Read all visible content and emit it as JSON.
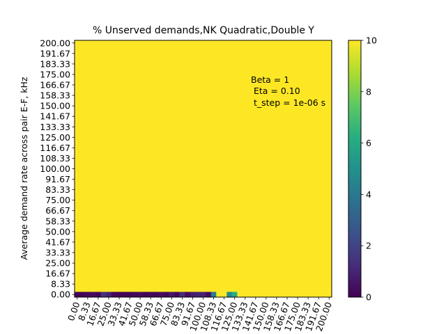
{
  "chart_data": {
    "type": "heatmap",
    "title": "% Unserved demands,NK Quadratic,Double Y",
    "xlabel": "",
    "ylabel": "Average demand rate across pair E-F, kHz",
    "x_ticks": [
      "0.00",
      "8.33",
      "16.67",
      "25.00",
      "33.33",
      "41.67",
      "50.00",
      "58.33",
      "66.67",
      "75.00",
      "83.33",
      "91.67",
      "100.00",
      "108.33",
      "116.67",
      "125.00",
      "133.33",
      "141.67",
      "150.00",
      "158.33",
      "166.67",
      "175.00",
      "183.33",
      "191.67",
      "200.00"
    ],
    "y_ticks": [
      "0.00",
      "8.33",
      "16.67",
      "25.00",
      "33.33",
      "41.67",
      "50.00",
      "58.33",
      "66.67",
      "75.00",
      "83.33",
      "91.67",
      "100.00",
      "108.33",
      "116.67",
      "125.00",
      "133.33",
      "141.67",
      "150.00",
      "158.33",
      "166.67",
      "175.00",
      "183.33",
      "191.67",
      "200.00"
    ],
    "grid_size": 49,
    "background_value": 10,
    "bottom_row_values": [
      0.05,
      0.1,
      0.2,
      0.3,
      0.15,
      1.4,
      1.0,
      0.2,
      0.1,
      0.05,
      0.1,
      0.2,
      0.3,
      0.1,
      0.2,
      0.15,
      0.3,
      0.1,
      0.6,
      0.2,
      1.2,
      0.3,
      0.8,
      1.0,
      0.9,
      0.3,
      4.2,
      10,
      10,
      4.8,
      6.2,
      10,
      10,
      10,
      10,
      10,
      10,
      10,
      10,
      10,
      10,
      10,
      10,
      10,
      10,
      10,
      10,
      10,
      10
    ],
    "colorbar": {
      "min": 0,
      "max": 10,
      "ticks": [
        "0",
        "2",
        "4",
        "6",
        "8",
        "10"
      ],
      "colormap": "viridis"
    },
    "annotation": {
      "line1": "Beta = 1",
      "line2": " Eta = 0.10",
      "line3": " t_step = 1e-06 s"
    }
  }
}
